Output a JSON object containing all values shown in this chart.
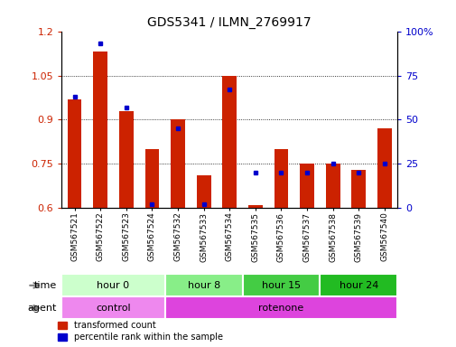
{
  "title": "GDS5341 / ILMN_2769917",
  "samples": [
    "GSM567521",
    "GSM567522",
    "GSM567523",
    "GSM567524",
    "GSM567532",
    "GSM567533",
    "GSM567534",
    "GSM567535",
    "GSM567536",
    "GSM567537",
    "GSM567538",
    "GSM567539",
    "GSM567540"
  ],
  "red_values": [
    0.97,
    1.13,
    0.93,
    0.8,
    0.9,
    0.71,
    1.05,
    0.61,
    0.8,
    0.75,
    0.75,
    0.73,
    0.87
  ],
  "blue_pct": [
    63,
    93,
    57,
    2,
    45,
    2,
    67,
    20,
    20,
    20,
    25,
    20,
    25
  ],
  "ylim_left": [
    0.6,
    1.2
  ],
  "ylim_right": [
    0,
    100
  ],
  "yticks_left": [
    0.6,
    0.75,
    0.9,
    1.05,
    1.2
  ],
  "yticks_right": [
    0,
    25,
    50,
    75,
    100
  ],
  "time_groups": [
    {
      "label": "hour 0",
      "start": 0,
      "end": 4,
      "color": "#ccffcc"
    },
    {
      "label": "hour 8",
      "start": 4,
      "end": 7,
      "color": "#88ee88"
    },
    {
      "label": "hour 15",
      "start": 7,
      "end": 10,
      "color": "#44cc44"
    },
    {
      "label": "hour 24",
      "start": 10,
      "end": 13,
      "color": "#22bb22"
    }
  ],
  "agent_groups": [
    {
      "label": "control",
      "start": 0,
      "end": 4,
      "color": "#ee88ee"
    },
    {
      "label": "rotenone",
      "start": 4,
      "end": 13,
      "color": "#dd44dd"
    }
  ],
  "bar_color": "#cc2200",
  "dot_color": "#0000cc",
  "bg_color": "#ffffff",
  "tick_color_left": "#cc2200",
  "tick_color_right": "#0000cc",
  "bar_width": 0.55,
  "baseline": 0.6,
  "legend_labels": [
    "transformed count",
    "percentile rank within the sample"
  ]
}
